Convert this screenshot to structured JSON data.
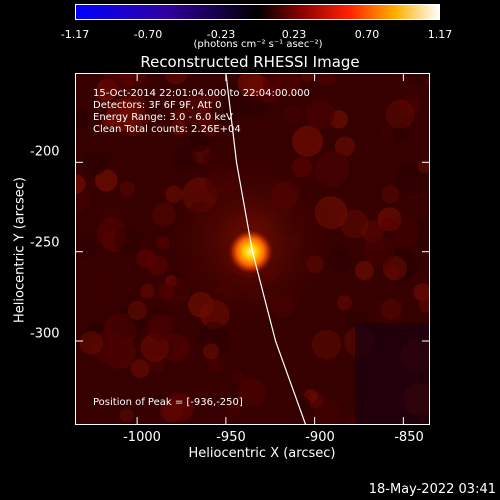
{
  "colorbar": {
    "ticks": [
      "-1.17",
      "-0.70",
      "-0.23",
      "0.23",
      "0.70",
      "1.17"
    ],
    "units": "(photons cm⁻² s⁻¹ asec⁻²)"
  },
  "title": "Reconstructed RHESSI Image",
  "info": {
    "time": "15-Oct-2014 22:01:04.000 to 22:04:00.000",
    "detectors": "Detectors: 3F 6F 9F, Att 0",
    "energy": "Energy Range: 3.0 - 6.0 keV",
    "clean": "Clean    Total counts: 2.26E+04",
    "peak": "Position of Peak = [-936,-250]"
  },
  "axes": {
    "xlabel": "Heliocentric X (arcsec)",
    "ylabel": "Heliocentric Y (arcsec)",
    "xticks": [
      "-1000",
      "-950",
      "-900",
      "-850"
    ],
    "yticks": [
      "-200",
      "-250",
      "-300"
    ]
  },
  "timestamp": "18-May-2022 03:41",
  "chart_data": {
    "type": "heatmap",
    "title": "Reconstructed RHESSI Image",
    "xlabel": "Heliocentric X (arcsec)",
    "ylabel": "Heliocentric Y (arcsec)",
    "xlim": [
      -1035,
      -835
    ],
    "ylim": [
      -347,
      -150
    ],
    "colorbar_range": [
      -1.17,
      1.17
    ],
    "peak": {
      "x": -936,
      "y": -250
    },
    "limb_curve": [
      [
        -950,
        -150
      ],
      [
        -944,
        -200
      ],
      [
        -935,
        -250
      ],
      [
        -922,
        -300
      ],
      [
        -905,
        -347
      ]
    ]
  }
}
